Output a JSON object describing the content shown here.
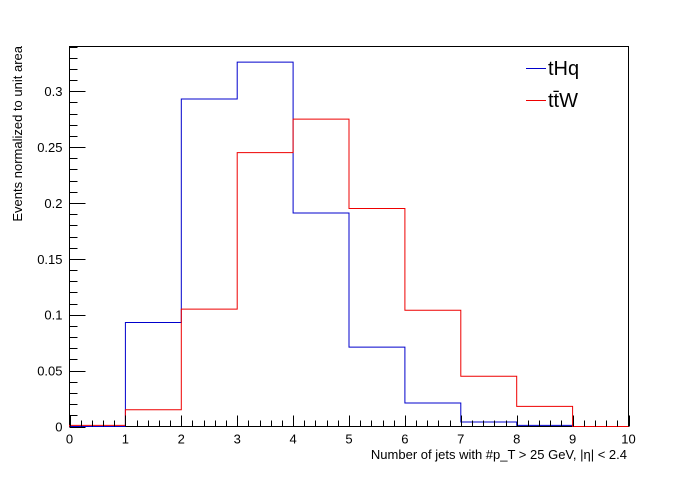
{
  "chart_data": {
    "type": "histogram",
    "title": "",
    "xlabel": "Number of jets with #p_T > 25 GeV, |η| < 2.4",
    "ylabel": "Events normalized to unit area",
    "xlim": [
      0,
      10
    ],
    "ylim": [
      0,
      0.34
    ],
    "grid": false,
    "legend_position": "top-right",
    "bin_edges": [
      0,
      1,
      2,
      3,
      4,
      5,
      6,
      7,
      8,
      9,
      10
    ],
    "x_ticks": [
      "0",
      "1",
      "2",
      "3",
      "4",
      "5",
      "6",
      "7",
      "8",
      "9",
      "10"
    ],
    "y_ticks": [
      {
        "value": 0,
        "label": "0"
      },
      {
        "value": 0.05,
        "label": "0.05"
      },
      {
        "value": 0.1,
        "label": "0.1"
      },
      {
        "value": 0.15,
        "label": "0.15"
      },
      {
        "value": 0.2,
        "label": "0.2"
      },
      {
        "value": 0.25,
        "label": "0.25"
      },
      {
        "value": 0.3,
        "label": "0.3"
      }
    ],
    "series": [
      {
        "name": "tHq",
        "color": "#0000cc",
        "values": [
          0.0,
          0.093,
          0.293,
          0.326,
          0.191,
          0.071,
          0.021,
          0.004,
          0.001,
          0.0
        ]
      },
      {
        "name": "tt̄W",
        "color": "#ee0000",
        "values": [
          0.001,
          0.015,
          0.105,
          0.245,
          0.275,
          0.195,
          0.104,
          0.045,
          0.018,
          0.0
        ]
      }
    ]
  }
}
